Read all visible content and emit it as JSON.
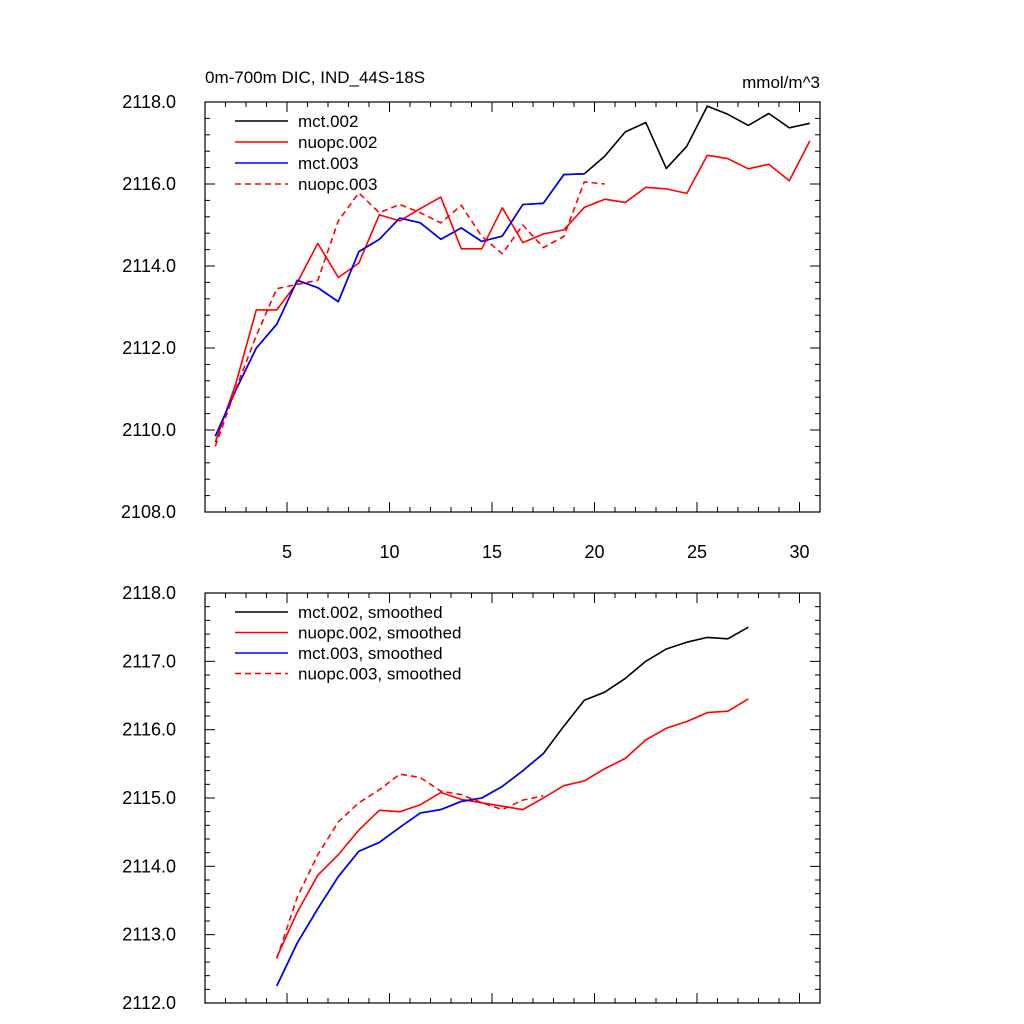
{
  "chart_data": [
    {
      "type": "line",
      "title_left": "0m-700m DIC, IND_44S-18S",
      "title_right": "mmol/m^3",
      "xlabel": "",
      "ylabel": "",
      "xlim": [
        1,
        31
      ],
      "ylim": [
        2108,
        2118
      ],
      "xticks": [
        5,
        10,
        15,
        20,
        25,
        30
      ],
      "xtick_labels": [
        "5",
        "10",
        "15",
        "20",
        "25",
        "30"
      ],
      "yticks": [
        2108,
        2110,
        2112,
        2114,
        2116,
        2118
      ],
      "ytick_labels": [
        "2108.0",
        "2110.0",
        "2112.0",
        "2114.0",
        "2116.0",
        "2118.0"
      ],
      "series": [
        {
          "name": "mct.002",
          "color": "#000000",
          "dash": "solid",
          "x": [
            1.5,
            2.5,
            3.5,
            4.5,
            5.5,
            6.5,
            7.5,
            8.5,
            9.5,
            10.5,
            11.5,
            12.5,
            13.5,
            14.5,
            15.5,
            16.5,
            17.5,
            18.5,
            19.5,
            20.5,
            21.5,
            22.5,
            23.5,
            24.5,
            25.5,
            26.5,
            27.5,
            28.5,
            29.5,
            30.5
          ],
          "values": [
            2109.85,
            2110.97,
            2112.0,
            2112.58,
            2113.65,
            2113.47,
            2113.13,
            2114.35,
            2114.65,
            2115.17,
            2115.05,
            2114.65,
            2114.93,
            2114.6,
            2114.73,
            2115.5,
            2115.53,
            2116.23,
            2116.25,
            2116.68,
            2117.27,
            2117.5,
            2116.38,
            2116.92,
            2117.9,
            2117.7,
            2117.43,
            2117.72,
            2117.37,
            2117.48
          ]
        },
        {
          "name": "nuopc.002",
          "color": "#ff0000",
          "dash": "solid",
          "x": [
            1.5,
            2.5,
            3.5,
            4.5,
            5.5,
            6.5,
            7.5,
            8.5,
            9.5,
            10.5,
            11.5,
            12.5,
            13.5,
            14.5,
            15.5,
            16.5,
            17.5,
            18.5,
            19.5,
            20.5,
            21.5,
            22.5,
            23.5,
            24.5,
            25.5,
            26.5,
            27.5,
            28.5,
            29.5,
            30.5
          ],
          "values": [
            2109.7,
            2111.13,
            2112.93,
            2112.93,
            2113.6,
            2114.55,
            2113.72,
            2114.07,
            2115.25,
            2115.1,
            2115.4,
            2115.68,
            2114.42,
            2114.42,
            2115.42,
            2114.57,
            2114.78,
            2114.88,
            2115.43,
            2115.63,
            2115.55,
            2115.92,
            2115.88,
            2115.77,
            2116.7,
            2116.62,
            2116.37,
            2116.48,
            2116.08,
            2117.05
          ]
        },
        {
          "name": "mct.003",
          "color": "#0000ff",
          "dash": "solid",
          "x": [
            1.5,
            2.5,
            3.5,
            4.5,
            5.5,
            6.5,
            7.5,
            8.5,
            9.5,
            10.5,
            11.5,
            12.5,
            13.5,
            14.5,
            15.5,
            16.5,
            17.5,
            18.5,
            19.5
          ],
          "values": [
            2109.85,
            2110.97,
            2112.0,
            2112.58,
            2113.65,
            2113.47,
            2113.13,
            2114.35,
            2114.65,
            2115.17,
            2115.05,
            2114.65,
            2114.93,
            2114.6,
            2114.73,
            2115.5,
            2115.53,
            2116.23,
            2116.25
          ]
        },
        {
          "name": "nuopc.003",
          "color": "#ff0000",
          "dash": "dashed",
          "x": [
            1.5,
            2.5,
            3.5,
            4.5,
            5.5,
            6.5,
            7.5,
            8.5,
            9.5,
            10.5,
            11.5,
            12.5,
            13.5,
            14.5,
            15.5,
            16.5,
            17.5,
            18.5,
            19.5,
            20.5
          ],
          "values": [
            2109.6,
            2111.0,
            2112.3,
            2113.45,
            2113.55,
            2113.65,
            2115.1,
            2115.78,
            2115.3,
            2115.5,
            2115.3,
            2115.05,
            2115.48,
            2114.72,
            2114.3,
            2115.0,
            2114.45,
            2114.72,
            2116.05,
            2116.0
          ]
        }
      ]
    },
    {
      "type": "line",
      "title_left": "",
      "title_right": "",
      "xlabel": "",
      "ylabel": "",
      "xlim": [
        1,
        31
      ],
      "ylim": [
        2112,
        2118
      ],
      "xticks": [
        5,
        10,
        15,
        20,
        25,
        30
      ],
      "xtick_labels": [],
      "yticks": [
        2112,
        2113,
        2114,
        2115,
        2116,
        2117,
        2118
      ],
      "ytick_labels": [
        "2112.0",
        "2113.0",
        "2114.0",
        "2115.0",
        "2116.0",
        "2117.0",
        "2118.0"
      ],
      "series": [
        {
          "name": "mct.002, smoothed",
          "color": "#000000",
          "dash": "solid",
          "x": [
            4.5,
            5.5,
            6.5,
            7.5,
            8.5,
            9.5,
            10.5,
            11.5,
            12.5,
            13.5,
            14.5,
            15.5,
            16.5,
            17.5,
            18.5,
            19.5,
            20.5,
            21.5,
            22.5,
            23.5,
            24.5,
            25.5,
            26.5,
            27.5
          ],
          "values": [
            2112.25,
            2112.88,
            2113.38,
            2113.85,
            2114.22,
            2114.35,
            2114.57,
            2114.78,
            2114.83,
            2114.95,
            2115.0,
            2115.17,
            2115.4,
            2115.65,
            2116.05,
            2116.43,
            2116.55,
            2116.75,
            2117.0,
            2117.18,
            2117.28,
            2117.35,
            2117.33,
            2117.5
          ]
        },
        {
          "name": "nuopc.002, smoothed",
          "color": "#ff0000",
          "dash": "solid",
          "x": [
            4.5,
            5.5,
            6.5,
            7.5,
            8.5,
            9.5,
            10.5,
            11.5,
            12.5,
            13.5,
            14.5,
            15.5,
            16.5,
            17.5,
            18.5,
            19.5,
            20.5,
            21.5,
            22.5,
            23.5,
            24.5,
            25.5,
            26.5,
            27.5
          ],
          "values": [
            2112.67,
            2113.33,
            2113.87,
            2114.17,
            2114.53,
            2114.82,
            2114.8,
            2114.9,
            2115.08,
            2114.98,
            2114.93,
            2114.88,
            2114.83,
            2115.0,
            2115.18,
            2115.25,
            2115.43,
            2115.58,
            2115.85,
            2116.02,
            2116.12,
            2116.25,
            2116.27,
            2116.45
          ]
        },
        {
          "name": "mct.003, smoothed",
          "color": "#0000ff",
          "dash": "solid",
          "x": [
            4.5,
            5.5,
            6.5,
            7.5,
            8.5,
            9.5,
            10.5,
            11.5,
            12.5,
            13.5,
            14.5,
            15.5,
            16.5,
            17.5
          ],
          "values": [
            2112.25,
            2112.88,
            2113.38,
            2113.85,
            2114.22,
            2114.35,
            2114.57,
            2114.78,
            2114.83,
            2114.95,
            2115.0,
            2115.17,
            2115.4,
            2115.65
          ]
        },
        {
          "name": "nuopc.003, smoothed",
          "color": "#ff0000",
          "dash": "dashed",
          "x": [
            4.5,
            5.5,
            6.5,
            7.5,
            8.5,
            9.5,
            10.5,
            11.5,
            12.5,
            13.5,
            14.5,
            15.5,
            16.5,
            17.5
          ],
          "values": [
            2112.65,
            2113.55,
            2114.17,
            2114.65,
            2114.93,
            2115.12,
            2115.35,
            2115.3,
            2115.1,
            2115.05,
            2114.93,
            2114.83,
            2114.97,
            2115.03
          ]
        }
      ]
    }
  ]
}
